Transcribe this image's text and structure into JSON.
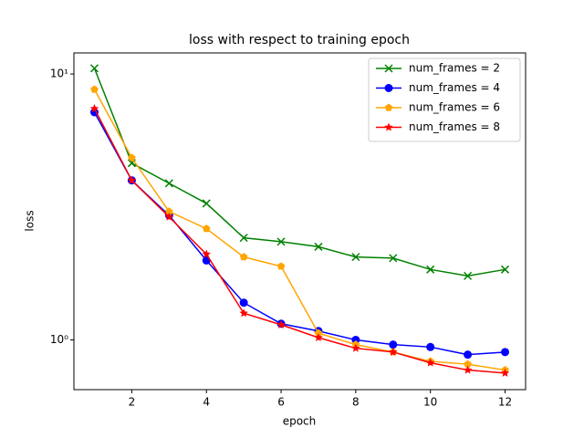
{
  "chart_data": {
    "type": "line",
    "title": "loss with respect to training epoch",
    "x_label": "epoch",
    "y_label": "loss",
    "x": [
      1,
      2,
      3,
      4,
      5,
      6,
      7,
      8,
      9,
      10,
      11,
      12
    ],
    "series": [
      {
        "name": "num_frames = 2",
        "color": "green",
        "marker": "x",
        "values": [
          10.5,
          4.62,
          3.88,
          3.26,
          2.42,
          2.34,
          2.24,
          2.05,
          2.03,
          1.84,
          1.74,
          1.84
        ]
      },
      {
        "name": "num_frames = 4",
        "color": "blue",
        "marker": "o",
        "values": [
          7.18,
          3.98,
          2.94,
          1.99,
          1.38,
          1.15,
          1.08,
          1.0,
          0.96,
          0.94,
          0.88,
          0.9
        ]
      },
      {
        "name": "num_frames = 6",
        "color": "orange",
        "marker": "p",
        "values": [
          8.75,
          4.84,
          3.04,
          2.62,
          2.05,
          1.89,
          1.06,
          0.96,
          0.9,
          0.83,
          0.81,
          0.77
        ]
      },
      {
        "name": "num_frames = 8",
        "color": "red",
        "marker": "*",
        "values": [
          7.41,
          3.98,
          2.9,
          2.1,
          1.26,
          1.14,
          1.02,
          0.93,
          0.9,
          0.82,
          0.77,
          0.75
        ]
      }
    ],
    "xlim": [
      0.45,
      12.55
    ],
    "xticks": [
      2,
      4,
      6,
      8,
      10,
      12
    ],
    "ylim": [
      0.65,
      12
    ],
    "yscale": "log",
    "yticks": [
      {
        "value": 1,
        "label": "10⁰"
      },
      {
        "value": 10,
        "label": "10¹"
      }
    ],
    "legend": "upper right"
  }
}
